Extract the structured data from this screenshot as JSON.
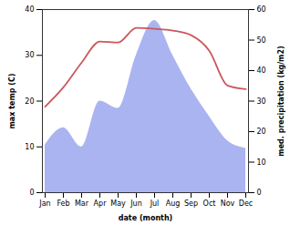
{
  "chart_data": {
    "type": "line",
    "x_label": "date (month)",
    "y_label": "max temp (C)",
    "y2_label": "med. precipitation (kg/m2)",
    "categories": [
      "Jan",
      "Feb",
      "Mar",
      "Apr",
      "May",
      "Jun",
      "Jul",
      "Aug",
      "Sep",
      "Oct",
      "Nov",
      "Dec"
    ],
    "series": [
      {
        "type": "area",
        "axis": "y2",
        "color": "#aab4f0",
        "values": [
          15.6,
          21.3,
          15,
          30,
          27.6,
          45,
          56.4,
          45,
          34,
          25,
          17,
          14.5
        ]
      },
      {
        "type": "line",
        "axis": "y",
        "color": "#c9585c",
        "values": [
          18.8,
          23,
          28.4,
          33,
          32.8,
          36,
          35.8,
          35.4,
          34.4,
          31,
          23.4,
          22.6
        ]
      }
    ],
    "ylim": [
      0,
      40
    ],
    "yticks": [
      0,
      10,
      20,
      30,
      40
    ],
    "y2lim": [
      0,
      60
    ],
    "y2ticks": [
      0,
      10,
      20,
      30,
      40,
      50,
      60
    ]
  }
}
